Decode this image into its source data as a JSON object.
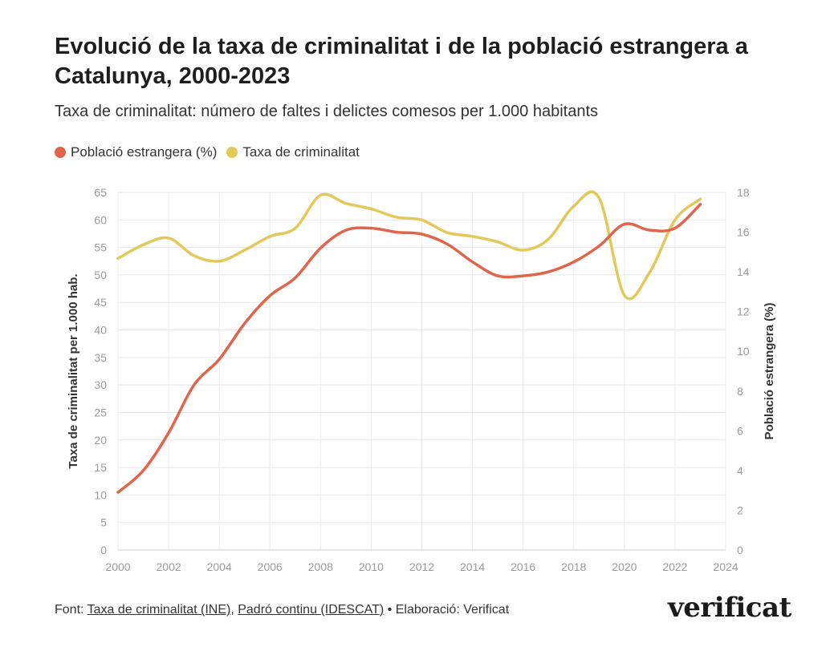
{
  "header": {
    "title": "Evolució de la taxa de criminalitat i de la població estrangera a Catalunya, 2000-2023",
    "subtitle": "Taxa de criminalitat: número de faltes i delictes comesos per 1.000 habitants"
  },
  "legend": {
    "items": [
      {
        "label": "Població estrangera (%)",
        "color": "#e0654a"
      },
      {
        "label": "Taxa de criminalitat",
        "color": "#e3c95a"
      }
    ]
  },
  "footer": {
    "prefix": "Font: ",
    "source1": "Taxa de criminalitat (INE)",
    "sep": ", ",
    "source2": "Padró continu (IDESCAT)",
    "suffix": " • Elaboració: Verificat",
    "logo": "verificat"
  },
  "chart_data": {
    "type": "line",
    "x": [
      2000,
      2001,
      2002,
      2003,
      2004,
      2005,
      2006,
      2007,
      2008,
      2009,
      2010,
      2011,
      2012,
      2013,
      2014,
      2015,
      2016,
      2017,
      2018,
      2019,
      2020,
      2021,
      2022,
      2023
    ],
    "xlim": [
      2000,
      2024
    ],
    "xticks": [
      2000,
      2002,
      2004,
      2006,
      2008,
      2010,
      2012,
      2014,
      2016,
      2018,
      2020,
      2022,
      2024
    ],
    "ylabel_left": "Taxa de criminalitat per 1.000 hab.",
    "ylabel_right": "Població estrangera (%)",
    "ylim_left": [
      0,
      65
    ],
    "yticks_left": [
      0,
      5,
      10,
      15,
      20,
      25,
      30,
      35,
      40,
      45,
      50,
      55,
      60,
      65
    ],
    "ylim_right": [
      0,
      18
    ],
    "yticks_right": [
      0,
      2,
      4,
      6,
      8,
      10,
      12,
      14,
      16,
      18
    ],
    "grid": true,
    "series": [
      {
        "name": "Població estrangera (%)",
        "axis": "right",
        "color": "#e0654a",
        "values": [
          2.9,
          4.0,
          5.9,
          8.3,
          9.6,
          11.4,
          12.8,
          13.7,
          15.2,
          16.1,
          16.2,
          16.0,
          15.9,
          15.4,
          14.5,
          13.8,
          13.8,
          14.0,
          14.5,
          15.3,
          16.4,
          16.1,
          16.2,
          17.4
        ]
      },
      {
        "name": "Taxa de criminalitat",
        "axis": "left",
        "color": "#e3c95a",
        "values": [
          53.0,
          55.5,
          56.7,
          53.5,
          52.5,
          54.5,
          57.0,
          58.5,
          64.5,
          63.0,
          62.0,
          60.5,
          60.0,
          57.7,
          57.0,
          56.0,
          54.5,
          56.5,
          62.5,
          64.0,
          46.3,
          50.5,
          60.0,
          63.8
        ]
      }
    ]
  }
}
